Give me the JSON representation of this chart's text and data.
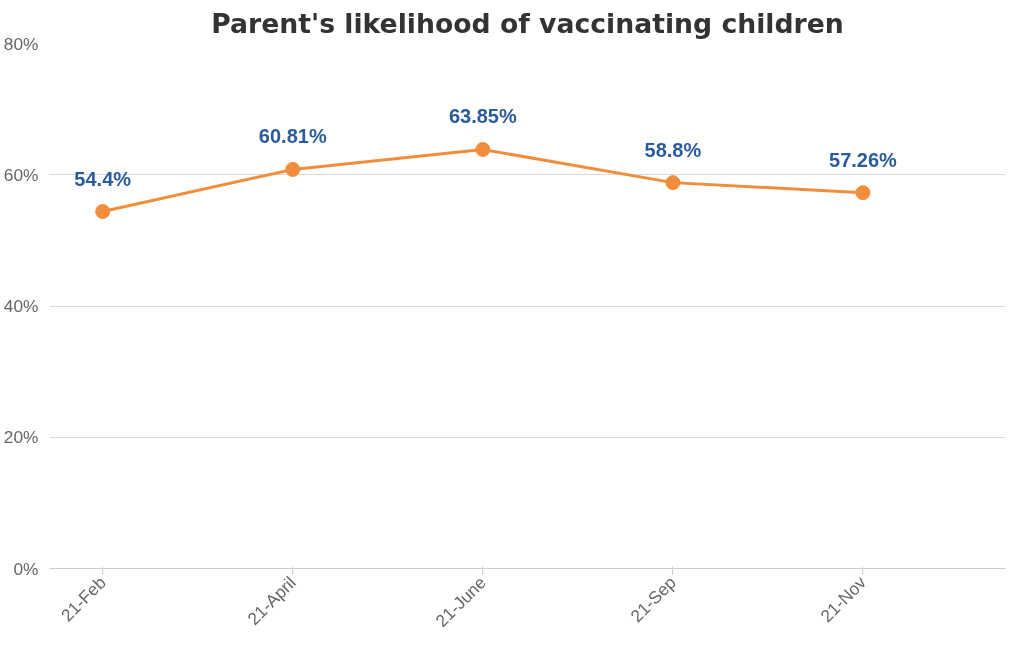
{
  "chart_data": {
    "type": "line",
    "title": "Parent's likelihood of vaccinating children",
    "categories": [
      "21-Feb",
      "21-April",
      "21-June",
      "21-Sep",
      "21-Nov"
    ],
    "series": [
      {
        "color": "#f28e3b",
        "values": [
          54.4,
          60.81,
          63.85,
          58.8,
          57.26
        ],
        "value_labels": [
          "54.4%",
          "60.81%",
          "63.85%",
          "58.8%",
          "57.26%"
        ]
      }
    ],
    "ylim": [
      0,
      80
    ],
    "yticks": [
      {
        "value": 0,
        "label": "0%"
      },
      {
        "value": 20,
        "label": "20%"
      },
      {
        "value": 40,
        "label": "40%"
      },
      {
        "value": 60,
        "label": "60%"
      },
      {
        "value": 80,
        "label": "80%"
      }
    ],
    "grid": "y",
    "marker": "circle",
    "line_style": "solid"
  }
}
